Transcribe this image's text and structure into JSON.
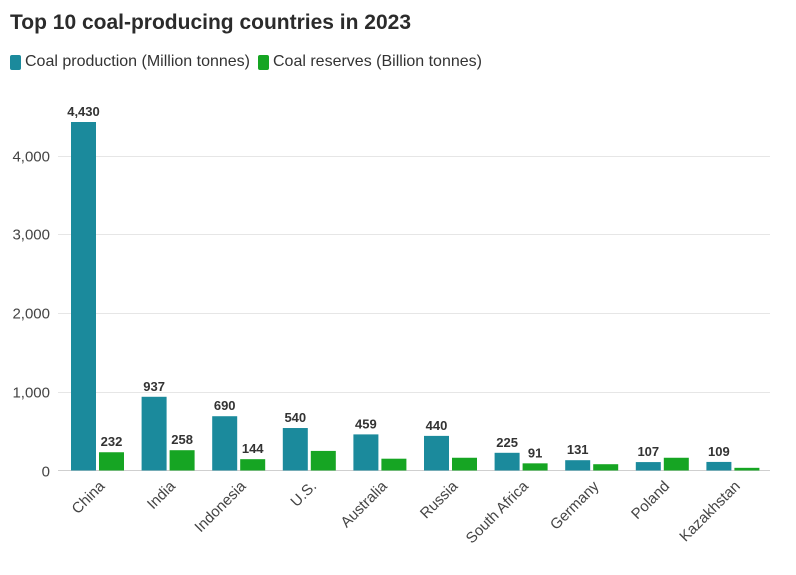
{
  "chart_data": {
    "type": "bar",
    "title": "Top 10 coal-producing countries in 2023",
    "categories": [
      "China",
      "India",
      "Indonesia",
      "U.S.",
      "Australia",
      "Russia",
      "South Africa",
      "Germany",
      "Poland",
      "Kazakhstan"
    ],
    "series": [
      {
        "name": "Coal production (Million tonnes)",
        "color": "#1b8a9c",
        "values": [
          4430,
          937,
          690,
          540,
          459,
          440,
          225,
          131,
          107,
          109
        ],
        "labels": [
          "4,430",
          "937",
          "690",
          "540",
          "459",
          "440",
          "225",
          "131",
          "107",
          "109"
        ]
      },
      {
        "name": "Coal reserves (Billion tonnes)",
        "color": "#16a523",
        "values": [
          232,
          258,
          144,
          249,
          150,
          162,
          91,
          80,
          162,
          34
        ],
        "labels": [
          "232",
          "258",
          "144",
          null,
          null,
          null,
          "91",
          null,
          null,
          null
        ]
      }
    ],
    "yticks": [
      0,
      1000,
      2000,
      3000,
      4000
    ],
    "ytick_labels": [
      "0",
      "1,000",
      "2,000",
      "3,000",
      "4,000"
    ],
    "ylim": [
      0,
      4430
    ],
    "xlabel": "",
    "ylabel": "",
    "grid": true,
    "legend": "top-left"
  }
}
